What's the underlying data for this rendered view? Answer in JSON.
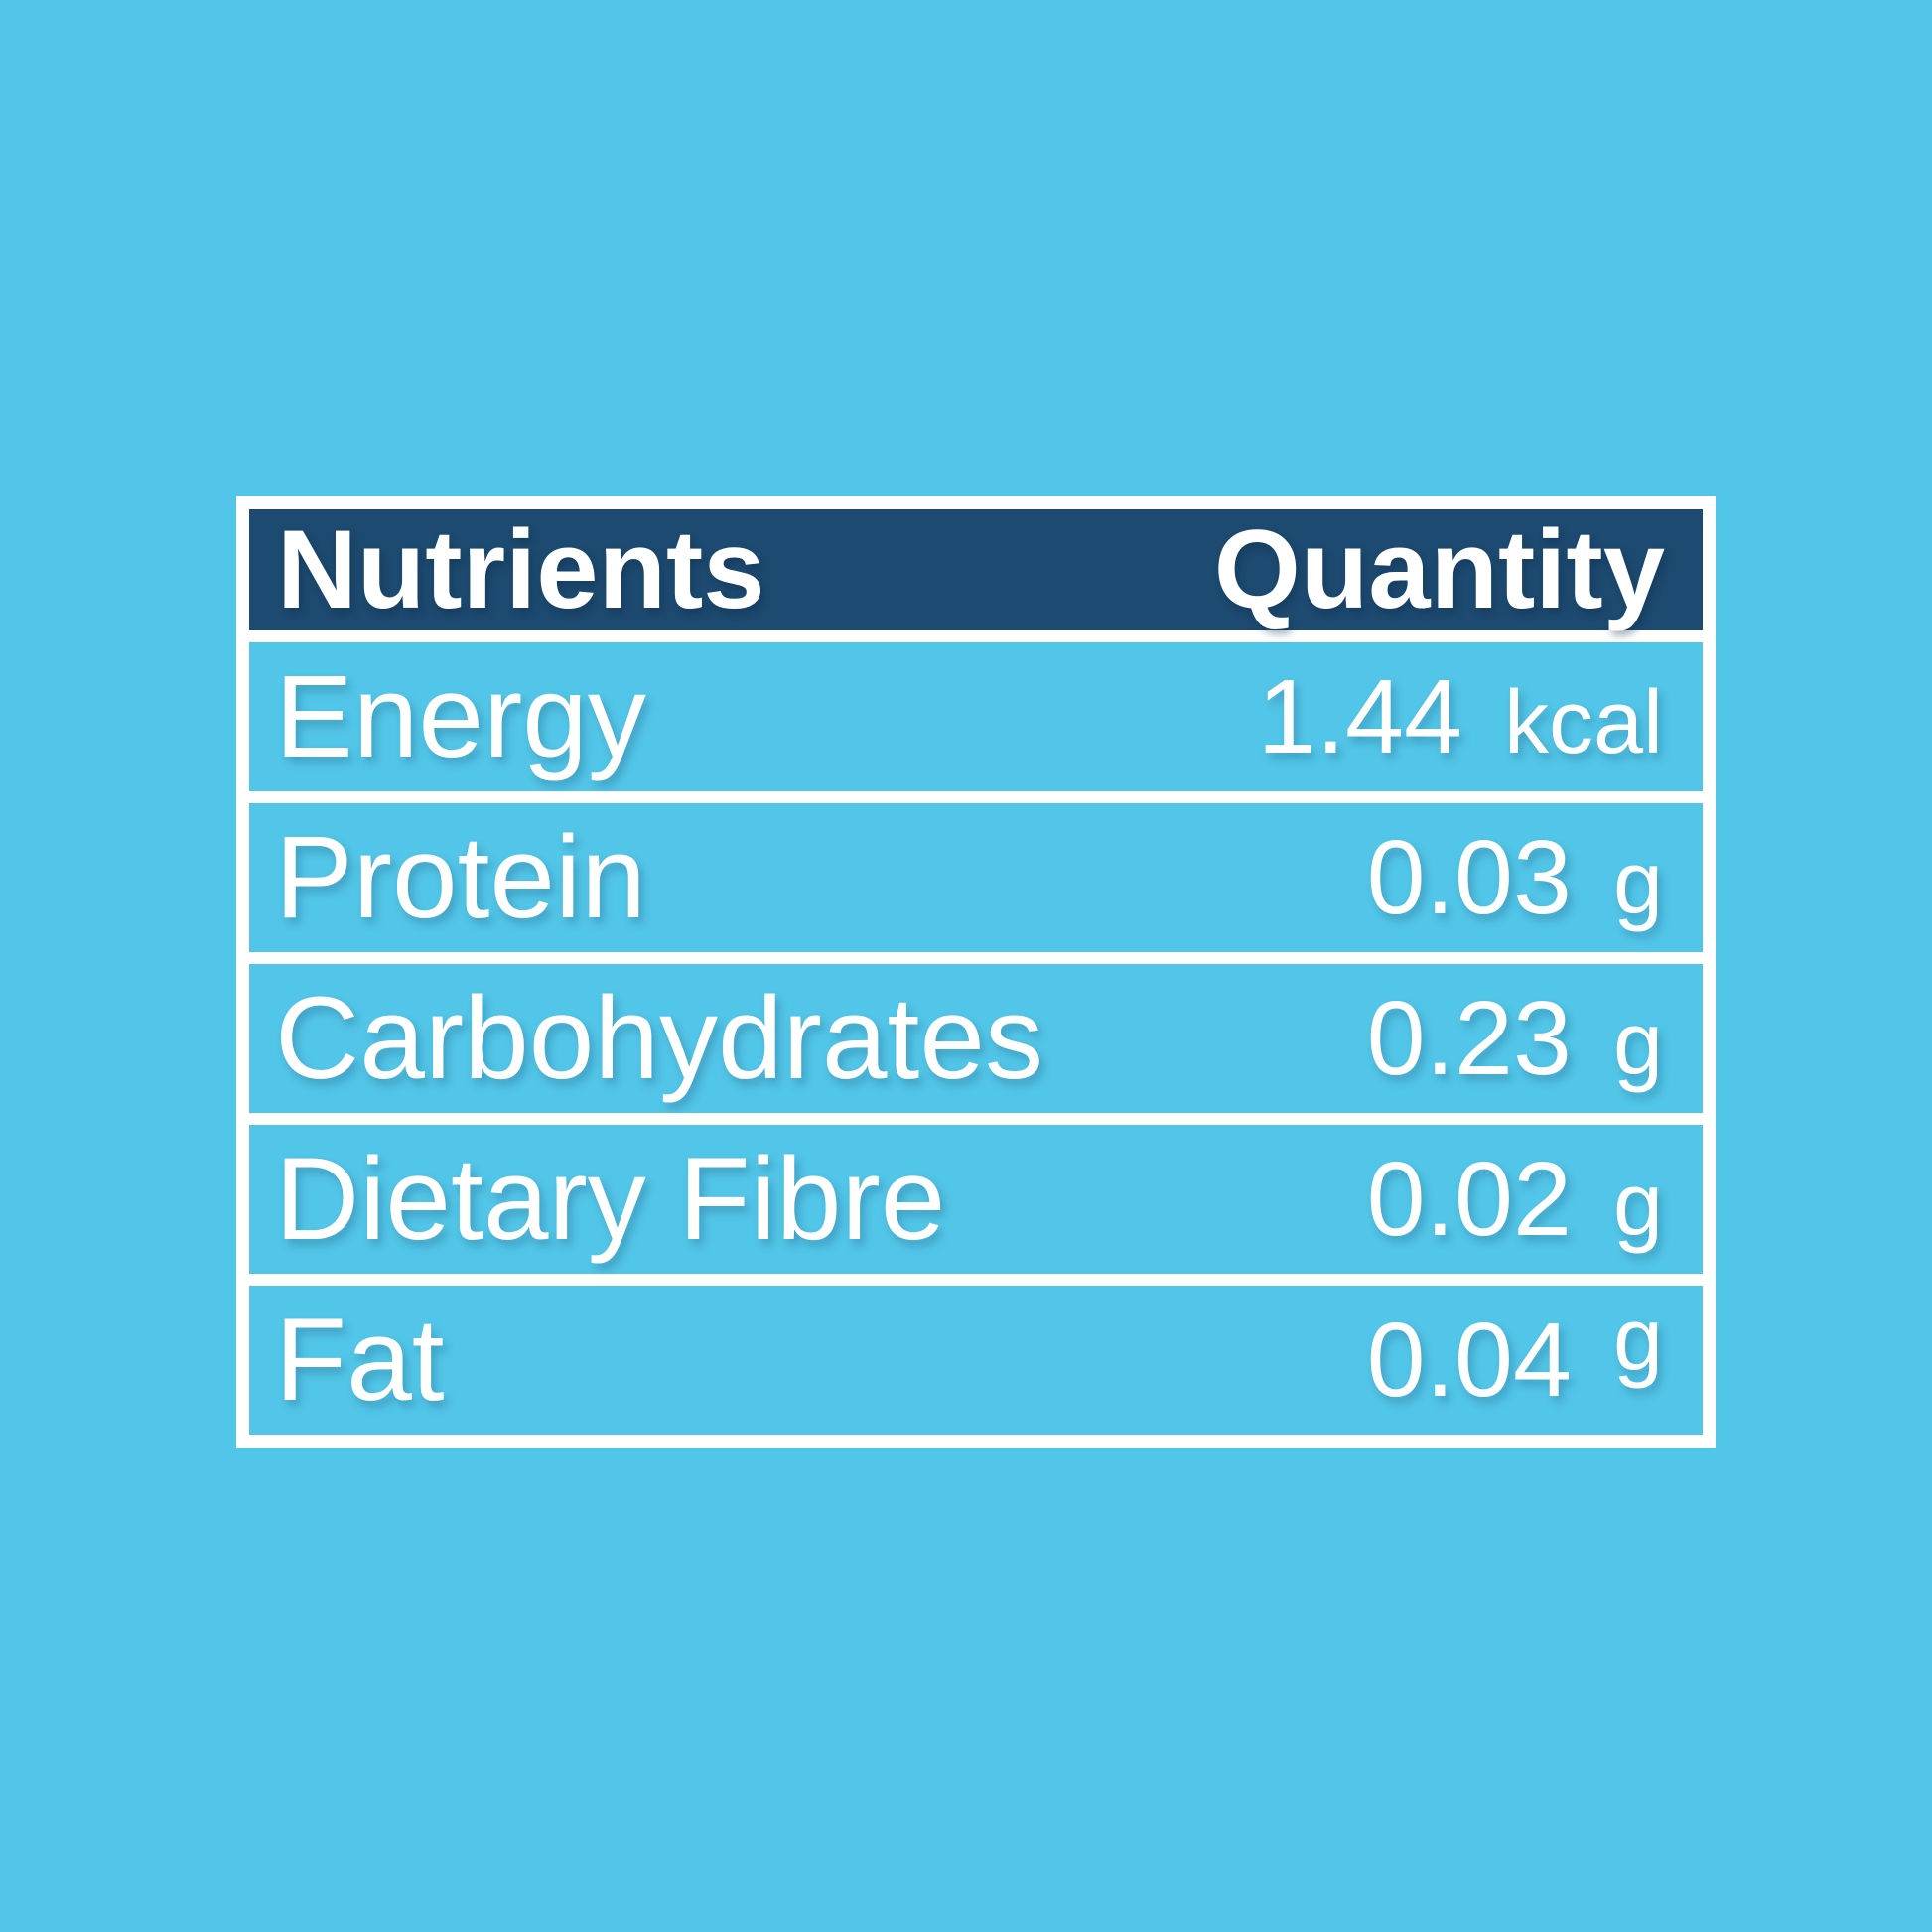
{
  "colors": {
    "page_background": "#52C6E8",
    "header_background": "#1D4A70",
    "row_background": "#52C6E8",
    "border_white": "#FFFFFF",
    "text_white": "#FFFFFF"
  },
  "table": {
    "header": {
      "col1": "Nutrients",
      "col2": "Quantity"
    },
    "rows": [
      {
        "label": "Energy",
        "value": "1.44",
        "unit": "kcal"
      },
      {
        "label": "Protein",
        "value": "0.03",
        "unit": "g"
      },
      {
        "label": "Carbohydrates",
        "value": "0.23",
        "unit": "g"
      },
      {
        "label": "Dietary Fibre",
        "value": "0.02",
        "unit": "g"
      },
      {
        "label": "Fat",
        "value": "0.04",
        "unit": "g"
      }
    ]
  },
  "chart_data": {
    "type": "table",
    "columns": [
      "Nutrients",
      "Quantity"
    ],
    "rows": [
      [
        "Energy",
        "1.44 kcal"
      ],
      [
        "Protein",
        "0.03 g"
      ],
      [
        "Carbohydrates",
        "0.23 g"
      ],
      [
        "Dietary Fibre",
        "0.02 g"
      ],
      [
        "Fat",
        "0.04 g"
      ]
    ],
    "layout_hints": {
      "header_style": "dark navy bar, white bold text, value column right-aligned",
      "row_style": "sky blue cells matching page background, separated by white rules",
      "units_smaller_than_numbers": true,
      "fat_row_unit_raised_above_baseline": true
    }
  }
}
